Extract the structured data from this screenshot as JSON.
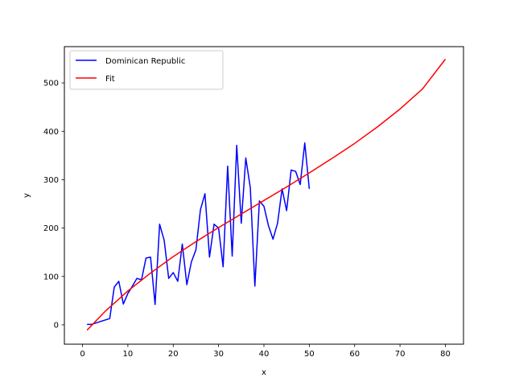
{
  "chart_data": {
    "type": "line",
    "title": "",
    "xlabel": "x",
    "ylabel": "y",
    "xlim": [
      -4,
      84
    ],
    "ylim": [
      -40,
      575
    ],
    "xticks": [
      0,
      10,
      20,
      30,
      40,
      50,
      60,
      70,
      80
    ],
    "yticks": [
      0,
      100,
      200,
      300,
      400,
      500
    ],
    "grid": false,
    "legend_position": "top-left",
    "series": [
      {
        "name": "Dominican Republic",
        "color": "#0000ff",
        "x": [
          1,
          2,
          3,
          4,
          5,
          6,
          7,
          8,
          9,
          10,
          11,
          12,
          13,
          14,
          15,
          16,
          17,
          18,
          19,
          20,
          21,
          22,
          23,
          24,
          25,
          26,
          27,
          28,
          29,
          30,
          31,
          32,
          33,
          34,
          35,
          36,
          37,
          38,
          39,
          40,
          41,
          42,
          43,
          44,
          45,
          46,
          47,
          48,
          49,
          50
        ],
        "y": [
          1,
          1,
          4,
          7,
          10,
          13,
          78,
          90,
          43,
          65,
          80,
          96,
          93,
          138,
          140,
          42,
          208,
          175,
          96,
          108,
          90,
          167,
          83,
          130,
          155,
          238,
          271,
          140,
          208,
          200,
          120,
          328,
          142,
          371,
          210,
          345,
          283,
          80,
          256,
          245,
          205,
          177,
          210,
          281,
          236,
          320,
          317,
          290,
          376,
          281
        ]
      },
      {
        "name": "Fit",
        "color": "#ff0000",
        "x": [
          1,
          5,
          10,
          15,
          20,
          25,
          30,
          35,
          40,
          45,
          50,
          55,
          60,
          65,
          70,
          75,
          80
        ],
        "y": [
          -11,
          28,
          70,
          107,
          141,
          172,
          201,
          229,
          257,
          285,
          314,
          344,
          375,
          409,
          446,
          488,
          549
        ]
      }
    ]
  }
}
